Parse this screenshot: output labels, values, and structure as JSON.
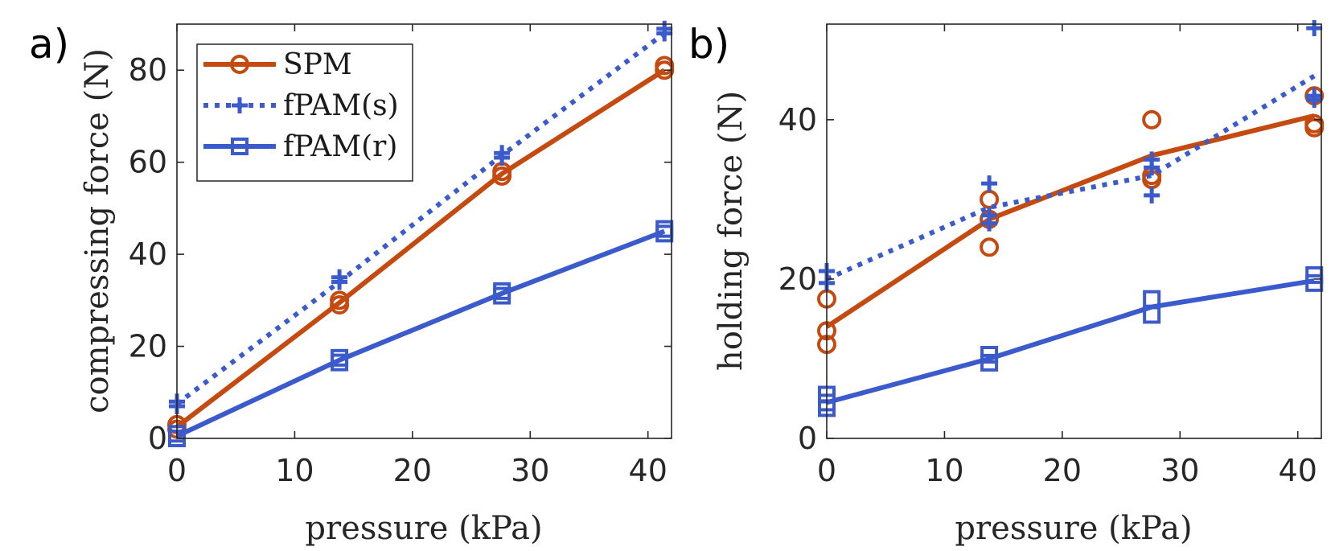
{
  "colors": {
    "spm": "#c44a10",
    "fpam": "#3b5bcc",
    "axis": "#262626"
  },
  "legend": {
    "location": "top-left",
    "entries": [
      {
        "key": "spm",
        "label": "SPM",
        "style": "solid",
        "marker": "circle"
      },
      {
        "key": "fpam_s",
        "label": "fPAM(s)",
        "style": "dotted",
        "marker": "plus"
      },
      {
        "key": "fpam_r",
        "label": "fPAM(r)",
        "style": "solid",
        "marker": "square"
      }
    ]
  },
  "chart_data": [
    {
      "type": "line",
      "panel_label": "a)",
      "xlabel": "pressure (kPa)",
      "ylabel": "compressing force (N)",
      "xlim": [
        0,
        42
      ],
      "ylim": [
        0,
        90
      ],
      "xticks": [
        "0",
        "10",
        "20",
        "30",
        "40"
      ],
      "yticks": [
        "0",
        "20",
        "40",
        "60",
        "80"
      ],
      "series": [
        {
          "key": "spm",
          "name": "SPM",
          "x": [
            0,
            13.8,
            27.6,
            41.4
          ],
          "mean": [
            2.5,
            29.5,
            57.5,
            80
          ],
          "points": [
            [
              0,
              3
            ],
            [
              0,
              2
            ],
            [
              13.8,
              29
            ],
            [
              13.8,
              30
            ],
            [
              27.6,
              57
            ],
            [
              27.6,
              58
            ],
            [
              41.4,
              80
            ],
            [
              41.4,
              81
            ]
          ]
        },
        {
          "key": "fpam_s",
          "name": "fPAM(s)",
          "x": [
            0,
            13.8,
            27.6,
            41.4
          ],
          "mean": [
            7.5,
            34,
            61.5,
            88
          ],
          "points": [
            [
              0,
              8
            ],
            [
              0,
              7
            ],
            [
              13.8,
              34
            ],
            [
              13.8,
              35
            ],
            [
              27.6,
              61
            ],
            [
              27.6,
              62
            ],
            [
              41.4,
              88
            ],
            [
              41.4,
              89
            ]
          ]
        },
        {
          "key": "fpam_r",
          "name": "fPAM(r)",
          "x": [
            0,
            13.8,
            27.6,
            41.4
          ],
          "mean": [
            0.5,
            17,
            31.5,
            45
          ],
          "points": [
            [
              0,
              0
            ],
            [
              0,
              1
            ],
            [
              13.8,
              16.5
            ],
            [
              13.8,
              17.5
            ],
            [
              27.6,
              31
            ],
            [
              27.6,
              32
            ],
            [
              41.4,
              44.5
            ],
            [
              41.4,
              45.5
            ]
          ]
        }
      ]
    },
    {
      "type": "line",
      "panel_label": "b)",
      "xlabel": "pressure (kPa)",
      "ylabel": "holding force (N)",
      "xlim": [
        0,
        42
      ],
      "ylim": [
        0,
        52
      ],
      "xticks": [
        "0",
        "10",
        "20",
        "30",
        "40"
      ],
      "yticks": [
        "0",
        "20",
        "40"
      ],
      "series": [
        {
          "key": "spm",
          "name": "SPM",
          "x": [
            0,
            13.8,
            27.6,
            41.4
          ],
          "mean": [
            14,
            27.5,
            35.5,
            40.5
          ],
          "points": [
            [
              0,
              17.5
            ],
            [
              0,
              13.5
            ],
            [
              0,
              11.8
            ],
            [
              13.8,
              30
            ],
            [
              13.8,
              27.5
            ],
            [
              13.8,
              24
            ],
            [
              27.6,
              40
            ],
            [
              27.6,
              33
            ],
            [
              27.6,
              32.5
            ],
            [
              41.4,
              43
            ],
            [
              41.4,
              39.5
            ],
            [
              41.4,
              39
            ]
          ]
        },
        {
          "key": "fpam_s",
          "name": "fPAM(s)",
          "x": [
            0,
            13.8,
            27.6,
            41.4
          ],
          "mean": [
            20,
            29,
            33,
            45.5
          ],
          "points": [
            [
              0,
              21
            ],
            [
              0,
              19.5
            ],
            [
              13.8,
              32
            ],
            [
              13.8,
              28
            ],
            [
              13.8,
              27
            ],
            [
              27.6,
              35
            ],
            [
              27.6,
              34
            ],
            [
              27.6,
              30.5
            ],
            [
              41.4,
              51.5
            ],
            [
              41.4,
              43
            ],
            [
              41.4,
              42.5
            ]
          ]
        },
        {
          "key": "fpam_r",
          "name": "fPAM(r)",
          "x": [
            0,
            13.8,
            27.6,
            41.4
          ],
          "mean": [
            4.5,
            10,
            16.5,
            19.8
          ],
          "points": [
            [
              0,
              5.5
            ],
            [
              0,
              4.5
            ],
            [
              0,
              3.8
            ],
            [
              13.8,
              10.5
            ],
            [
              13.8,
              9.5
            ],
            [
              27.6,
              17.5
            ],
            [
              27.6,
              15.5
            ],
            [
              41.4,
              20.5
            ],
            [
              41.4,
              19.5
            ]
          ]
        }
      ]
    }
  ]
}
